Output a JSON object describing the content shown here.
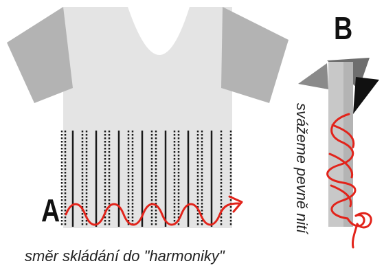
{
  "labels": {
    "a": "A",
    "b": "B"
  },
  "captions": {
    "folding_direction": "směr skládání do \"harmoniky\"",
    "tie_note": "svážeme pevně nití"
  },
  "colors": {
    "shirt": "#e4e4e4",
    "sleeve": "#b0b0b0",
    "fold_line": "#1a1a1a",
    "thread": "#e2231a"
  }
}
